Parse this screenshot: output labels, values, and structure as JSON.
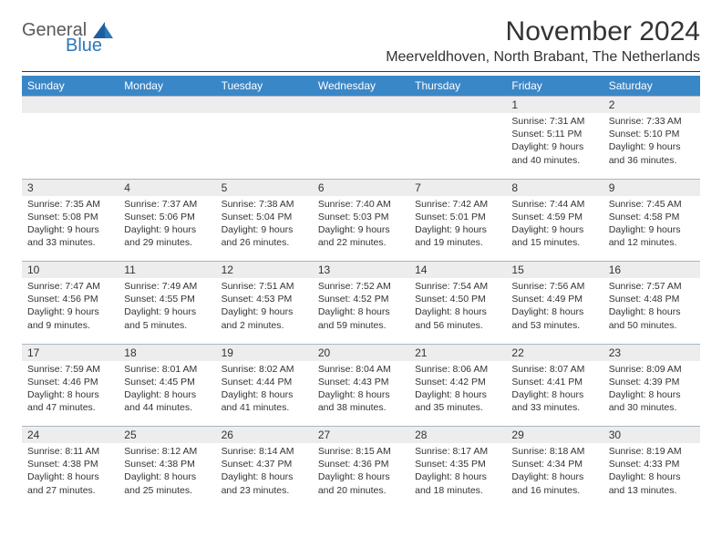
{
  "logo": {
    "general": "General",
    "blue": "Blue"
  },
  "title": "November 2024",
  "location": "Meerveldhoven, North Brabant, The Netherlands",
  "colors": {
    "header_bg": "#3a87c8",
    "header_text": "#ffffff",
    "daynum_bg": "#ededed",
    "text": "#333333",
    "logo_gray": "#5a5a5a",
    "logo_blue": "#2b77b8",
    "row_border": "#a8b6c4"
  },
  "weekdays": [
    "Sunday",
    "Monday",
    "Tuesday",
    "Wednesday",
    "Thursday",
    "Friday",
    "Saturday"
  ],
  "weeks": [
    [
      null,
      null,
      null,
      null,
      null,
      {
        "d": "1",
        "sr": "Sunrise: 7:31 AM",
        "ss": "Sunset: 5:11 PM",
        "dl1": "Daylight: 9 hours",
        "dl2": "and 40 minutes."
      },
      {
        "d": "2",
        "sr": "Sunrise: 7:33 AM",
        "ss": "Sunset: 5:10 PM",
        "dl1": "Daylight: 9 hours",
        "dl2": "and 36 minutes."
      }
    ],
    [
      {
        "d": "3",
        "sr": "Sunrise: 7:35 AM",
        "ss": "Sunset: 5:08 PM",
        "dl1": "Daylight: 9 hours",
        "dl2": "and 33 minutes."
      },
      {
        "d": "4",
        "sr": "Sunrise: 7:37 AM",
        "ss": "Sunset: 5:06 PM",
        "dl1": "Daylight: 9 hours",
        "dl2": "and 29 minutes."
      },
      {
        "d": "5",
        "sr": "Sunrise: 7:38 AM",
        "ss": "Sunset: 5:04 PM",
        "dl1": "Daylight: 9 hours",
        "dl2": "and 26 minutes."
      },
      {
        "d": "6",
        "sr": "Sunrise: 7:40 AM",
        "ss": "Sunset: 5:03 PM",
        "dl1": "Daylight: 9 hours",
        "dl2": "and 22 minutes."
      },
      {
        "d": "7",
        "sr": "Sunrise: 7:42 AM",
        "ss": "Sunset: 5:01 PM",
        "dl1": "Daylight: 9 hours",
        "dl2": "and 19 minutes."
      },
      {
        "d": "8",
        "sr": "Sunrise: 7:44 AM",
        "ss": "Sunset: 4:59 PM",
        "dl1": "Daylight: 9 hours",
        "dl2": "and 15 minutes."
      },
      {
        "d": "9",
        "sr": "Sunrise: 7:45 AM",
        "ss": "Sunset: 4:58 PM",
        "dl1": "Daylight: 9 hours",
        "dl2": "and 12 minutes."
      }
    ],
    [
      {
        "d": "10",
        "sr": "Sunrise: 7:47 AM",
        "ss": "Sunset: 4:56 PM",
        "dl1": "Daylight: 9 hours",
        "dl2": "and 9 minutes."
      },
      {
        "d": "11",
        "sr": "Sunrise: 7:49 AM",
        "ss": "Sunset: 4:55 PM",
        "dl1": "Daylight: 9 hours",
        "dl2": "and 5 minutes."
      },
      {
        "d": "12",
        "sr": "Sunrise: 7:51 AM",
        "ss": "Sunset: 4:53 PM",
        "dl1": "Daylight: 9 hours",
        "dl2": "and 2 minutes."
      },
      {
        "d": "13",
        "sr": "Sunrise: 7:52 AM",
        "ss": "Sunset: 4:52 PM",
        "dl1": "Daylight: 8 hours",
        "dl2": "and 59 minutes."
      },
      {
        "d": "14",
        "sr": "Sunrise: 7:54 AM",
        "ss": "Sunset: 4:50 PM",
        "dl1": "Daylight: 8 hours",
        "dl2": "and 56 minutes."
      },
      {
        "d": "15",
        "sr": "Sunrise: 7:56 AM",
        "ss": "Sunset: 4:49 PM",
        "dl1": "Daylight: 8 hours",
        "dl2": "and 53 minutes."
      },
      {
        "d": "16",
        "sr": "Sunrise: 7:57 AM",
        "ss": "Sunset: 4:48 PM",
        "dl1": "Daylight: 8 hours",
        "dl2": "and 50 minutes."
      }
    ],
    [
      {
        "d": "17",
        "sr": "Sunrise: 7:59 AM",
        "ss": "Sunset: 4:46 PM",
        "dl1": "Daylight: 8 hours",
        "dl2": "and 47 minutes."
      },
      {
        "d": "18",
        "sr": "Sunrise: 8:01 AM",
        "ss": "Sunset: 4:45 PM",
        "dl1": "Daylight: 8 hours",
        "dl2": "and 44 minutes."
      },
      {
        "d": "19",
        "sr": "Sunrise: 8:02 AM",
        "ss": "Sunset: 4:44 PM",
        "dl1": "Daylight: 8 hours",
        "dl2": "and 41 minutes."
      },
      {
        "d": "20",
        "sr": "Sunrise: 8:04 AM",
        "ss": "Sunset: 4:43 PM",
        "dl1": "Daylight: 8 hours",
        "dl2": "and 38 minutes."
      },
      {
        "d": "21",
        "sr": "Sunrise: 8:06 AM",
        "ss": "Sunset: 4:42 PM",
        "dl1": "Daylight: 8 hours",
        "dl2": "and 35 minutes."
      },
      {
        "d": "22",
        "sr": "Sunrise: 8:07 AM",
        "ss": "Sunset: 4:41 PM",
        "dl1": "Daylight: 8 hours",
        "dl2": "and 33 minutes."
      },
      {
        "d": "23",
        "sr": "Sunrise: 8:09 AM",
        "ss": "Sunset: 4:39 PM",
        "dl1": "Daylight: 8 hours",
        "dl2": "and 30 minutes."
      }
    ],
    [
      {
        "d": "24",
        "sr": "Sunrise: 8:11 AM",
        "ss": "Sunset: 4:38 PM",
        "dl1": "Daylight: 8 hours",
        "dl2": "and 27 minutes."
      },
      {
        "d": "25",
        "sr": "Sunrise: 8:12 AM",
        "ss": "Sunset: 4:38 PM",
        "dl1": "Daylight: 8 hours",
        "dl2": "and 25 minutes."
      },
      {
        "d": "26",
        "sr": "Sunrise: 8:14 AM",
        "ss": "Sunset: 4:37 PM",
        "dl1": "Daylight: 8 hours",
        "dl2": "and 23 minutes."
      },
      {
        "d": "27",
        "sr": "Sunrise: 8:15 AM",
        "ss": "Sunset: 4:36 PM",
        "dl1": "Daylight: 8 hours",
        "dl2": "and 20 minutes."
      },
      {
        "d": "28",
        "sr": "Sunrise: 8:17 AM",
        "ss": "Sunset: 4:35 PM",
        "dl1": "Daylight: 8 hours",
        "dl2": "and 18 minutes."
      },
      {
        "d": "29",
        "sr": "Sunrise: 8:18 AM",
        "ss": "Sunset: 4:34 PM",
        "dl1": "Daylight: 8 hours",
        "dl2": "and 16 minutes."
      },
      {
        "d": "30",
        "sr": "Sunrise: 8:19 AM",
        "ss": "Sunset: 4:33 PM",
        "dl1": "Daylight: 8 hours",
        "dl2": "and 13 minutes."
      }
    ]
  ]
}
